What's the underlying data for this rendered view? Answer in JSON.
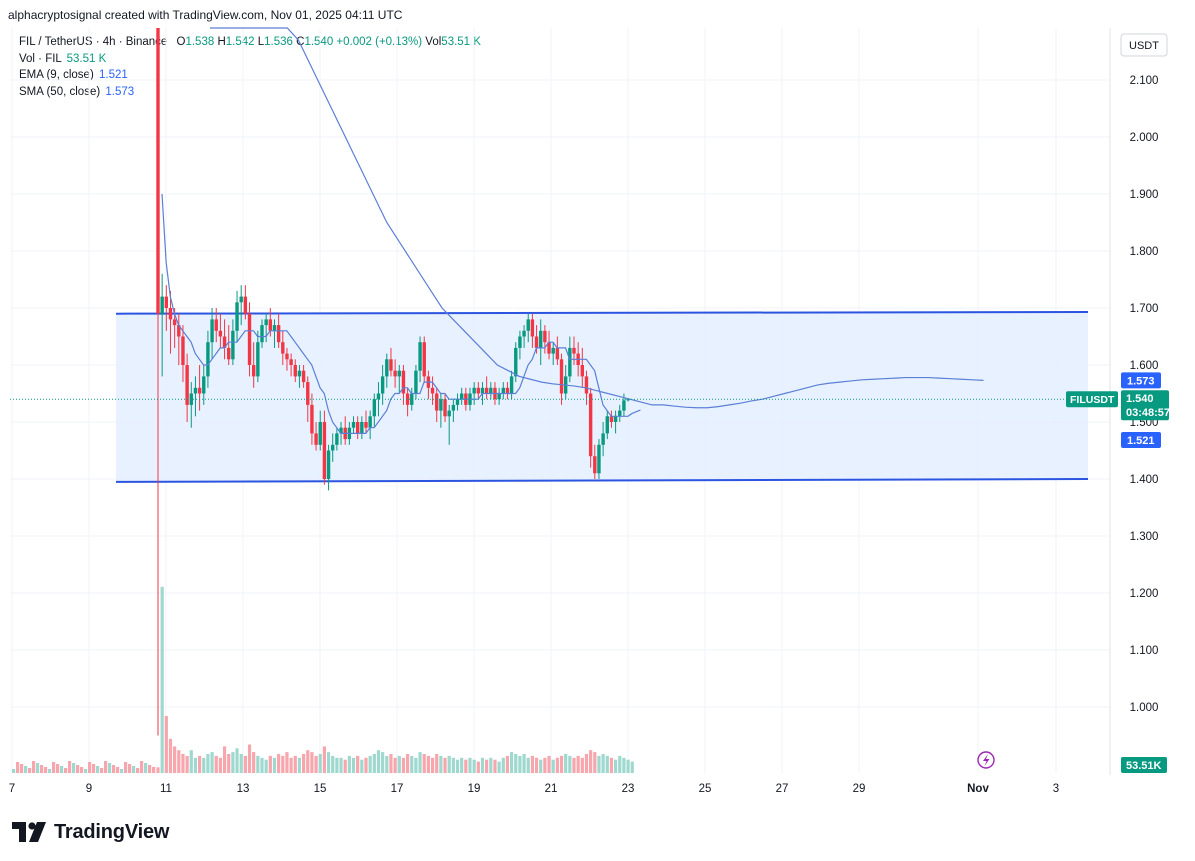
{
  "header": {
    "credit": "alphacryptosignal created with TradingView.com, Nov 01, 2025 04:11 UTC"
  },
  "legend": {
    "symbol": "FIL / TetherUS · 4h · Binance",
    "open_label": "O",
    "open": "1.538",
    "high_label": "H",
    "high": "1.542",
    "low_label": "L",
    "low": "1.536",
    "close_label": "C",
    "close": "1.540",
    "change": "+0.002 (+0.13%)",
    "vol_label": "Vol",
    "vol": "53.51 K",
    "vol_line_label": "Vol · FIL",
    "vol_line_value": "53.51 K",
    "ema_label": "EMA (9, close)",
    "ema_value": "1.521",
    "sma_label": "SMA (50, close)",
    "sma_value": "1.573"
  },
  "colors": {
    "up": "#089981",
    "down": "#f23645",
    "up_volume": "#9fd8cf",
    "down_volume": "#f6a6ac",
    "ma_line": "#5b7fd6",
    "channel_line": "#2b55e0",
    "channel_fill": "#e5efff",
    "axis_text": "#131722",
    "grid": "#f0f3fa"
  },
  "chart_data": {
    "type": "candlestick",
    "title": "FIL / TetherUS · 4h · Binance",
    "currency": "USDT",
    "x_ticks": [
      "7",
      "9",
      "11",
      "13",
      "15",
      "17",
      "19",
      "21",
      "23",
      "25",
      "27",
      "29",
      "Nov",
      "3"
    ],
    "y_ticks": [
      "2.100",
      "2.000",
      "1.900",
      "1.800",
      "1.700",
      "1.600",
      "1.500",
      "1.400",
      "1.300",
      "1.200",
      "1.100",
      "1.000"
    ],
    "y_range": [
      0.93,
      2.14
    ],
    "price_labels": {
      "sma": "1.573",
      "ticker": "FILUSDT",
      "last": "1.540",
      "countdown": "03:48:57",
      "ema": "1.521",
      "volume": "53.51K"
    },
    "channel": {
      "upper": [
        {
          "date": "Oct 10",
          "price": 1.69
        },
        {
          "date": "Nov 1",
          "price": 1.693
        }
      ],
      "lower": [
        {
          "date": "Oct 10",
          "price": 1.395
        },
        {
          "date": "Nov 1",
          "price": 1.4
        }
      ]
    },
    "candles_4h": [
      {
        "o": 2.3,
        "h": 2.6,
        "l": 0.95,
        "c": 1.69
      },
      {
        "o": 1.69,
        "h": 1.76,
        "l": 1.58,
        "c": 1.72
      },
      {
        "o": 1.72,
        "h": 1.74,
        "l": 1.66,
        "c": 1.7
      },
      {
        "o": 1.7,
        "h": 1.73,
        "l": 1.62,
        "c": 1.68
      },
      {
        "o": 1.68,
        "h": 1.7,
        "l": 1.63,
        "c": 1.67
      },
      {
        "o": 1.67,
        "h": 1.69,
        "l": 1.6,
        "c": 1.65
      },
      {
        "o": 1.65,
        "h": 1.67,
        "l": 1.57,
        "c": 1.6
      },
      {
        "o": 1.6,
        "h": 1.62,
        "l": 1.5,
        "c": 1.53
      },
      {
        "o": 1.53,
        "h": 1.57,
        "l": 1.49,
        "c": 1.55
      },
      {
        "o": 1.55,
        "h": 1.58,
        "l": 1.51,
        "c": 1.56
      },
      {
        "o": 1.56,
        "h": 1.6,
        "l": 1.52,
        "c": 1.55
      },
      {
        "o": 1.55,
        "h": 1.6,
        "l": 1.53,
        "c": 1.58
      },
      {
        "o": 1.58,
        "h": 1.66,
        "l": 1.56,
        "c": 1.64
      },
      {
        "o": 1.64,
        "h": 1.7,
        "l": 1.61,
        "c": 1.68
      },
      {
        "o": 1.68,
        "h": 1.7,
        "l": 1.64,
        "c": 1.66
      },
      {
        "o": 1.66,
        "h": 1.69,
        "l": 1.63,
        "c": 1.65
      },
      {
        "o": 1.65,
        "h": 1.68,
        "l": 1.61,
        "c": 1.63
      },
      {
        "o": 1.63,
        "h": 1.67,
        "l": 1.6,
        "c": 1.61
      },
      {
        "o": 1.61,
        "h": 1.68,
        "l": 1.6,
        "c": 1.66
      },
      {
        "o": 1.66,
        "h": 1.73,
        "l": 1.64,
        "c": 1.71
      },
      {
        "o": 1.71,
        "h": 1.74,
        "l": 1.67,
        "c": 1.72
      },
      {
        "o": 1.72,
        "h": 1.74,
        "l": 1.68,
        "c": 1.69
      },
      {
        "o": 1.69,
        "h": 1.71,
        "l": 1.58,
        "c": 1.6
      },
      {
        "o": 1.6,
        "h": 1.64,
        "l": 1.56,
        "c": 1.58
      },
      {
        "o": 1.58,
        "h": 1.66,
        "l": 1.57,
        "c": 1.64
      },
      {
        "o": 1.64,
        "h": 1.68,
        "l": 1.63,
        "c": 1.67
      },
      {
        "o": 1.67,
        "h": 1.69,
        "l": 1.64,
        "c": 1.68
      },
      {
        "o": 1.68,
        "h": 1.7,
        "l": 1.65,
        "c": 1.66
      },
      {
        "o": 1.66,
        "h": 1.68,
        "l": 1.63,
        "c": 1.67
      },
      {
        "o": 1.67,
        "h": 1.69,
        "l": 1.63,
        "c": 1.64
      },
      {
        "o": 1.64,
        "h": 1.66,
        "l": 1.6,
        "c": 1.62
      },
      {
        "o": 1.62,
        "h": 1.63,
        "l": 1.59,
        "c": 1.61
      },
      {
        "o": 1.61,
        "h": 1.62,
        "l": 1.58,
        "c": 1.6
      },
      {
        "o": 1.6,
        "h": 1.61,
        "l": 1.57,
        "c": 1.58
      },
      {
        "o": 1.58,
        "h": 1.6,
        "l": 1.56,
        "c": 1.59
      },
      {
        "o": 1.59,
        "h": 1.6,
        "l": 1.56,
        "c": 1.57
      },
      {
        "o": 1.57,
        "h": 1.58,
        "l": 1.5,
        "c": 1.53
      },
      {
        "o": 1.53,
        "h": 1.55,
        "l": 1.46,
        "c": 1.48
      },
      {
        "o": 1.48,
        "h": 1.5,
        "l": 1.45,
        "c": 1.46
      },
      {
        "o": 1.46,
        "h": 1.52,
        "l": 1.45,
        "c": 1.5
      },
      {
        "o": 1.5,
        "h": 1.52,
        "l": 1.39,
        "c": 1.4
      },
      {
        "o": 1.4,
        "h": 1.46,
        "l": 1.38,
        "c": 1.45
      },
      {
        "o": 1.45,
        "h": 1.48,
        "l": 1.43,
        "c": 1.46
      },
      {
        "o": 1.46,
        "h": 1.49,
        "l": 1.45,
        "c": 1.48
      },
      {
        "o": 1.48,
        "h": 1.5,
        "l": 1.46,
        "c": 1.49
      },
      {
        "o": 1.49,
        "h": 1.51,
        "l": 1.46,
        "c": 1.47
      },
      {
        "o": 1.47,
        "h": 1.5,
        "l": 1.46,
        "c": 1.49
      },
      {
        "o": 1.49,
        "h": 1.51,
        "l": 1.48,
        "c": 1.5
      },
      {
        "o": 1.5,
        "h": 1.51,
        "l": 1.47,
        "c": 1.48
      },
      {
        "o": 1.48,
        "h": 1.51,
        "l": 1.47,
        "c": 1.5
      },
      {
        "o": 1.5,
        "h": 1.52,
        "l": 1.48,
        "c": 1.49
      },
      {
        "o": 1.49,
        "h": 1.52,
        "l": 1.47,
        "c": 1.51
      },
      {
        "o": 1.51,
        "h": 1.55,
        "l": 1.49,
        "c": 1.54
      },
      {
        "o": 1.54,
        "h": 1.57,
        "l": 1.51,
        "c": 1.55
      },
      {
        "o": 1.55,
        "h": 1.6,
        "l": 1.53,
        "c": 1.58
      },
      {
        "o": 1.58,
        "h": 1.62,
        "l": 1.56,
        "c": 1.61
      },
      {
        "o": 1.61,
        "h": 1.63,
        "l": 1.58,
        "c": 1.59
      },
      {
        "o": 1.59,
        "h": 1.61,
        "l": 1.56,
        "c": 1.58
      },
      {
        "o": 1.58,
        "h": 1.6,
        "l": 1.55,
        "c": 1.59
      },
      {
        "o": 1.59,
        "h": 1.6,
        "l": 1.53,
        "c": 1.55
      },
      {
        "o": 1.55,
        "h": 1.56,
        "l": 1.51,
        "c": 1.53
      },
      {
        "o": 1.53,
        "h": 1.56,
        "l": 1.52,
        "c": 1.55
      },
      {
        "o": 1.55,
        "h": 1.6,
        "l": 1.54,
        "c": 1.59
      },
      {
        "o": 1.59,
        "h": 1.65,
        "l": 1.57,
        "c": 1.64
      },
      {
        "o": 1.64,
        "h": 1.65,
        "l": 1.57,
        "c": 1.58
      },
      {
        "o": 1.58,
        "h": 1.59,
        "l": 1.54,
        "c": 1.56
      },
      {
        "o": 1.56,
        "h": 1.58,
        "l": 1.53,
        "c": 1.55
      },
      {
        "o": 1.55,
        "h": 1.56,
        "l": 1.5,
        "c": 1.52
      },
      {
        "o": 1.52,
        "h": 1.55,
        "l": 1.49,
        "c": 1.54
      },
      {
        "o": 1.54,
        "h": 1.55,
        "l": 1.5,
        "c": 1.51
      },
      {
        "o": 1.51,
        "h": 1.53,
        "l": 1.46,
        "c": 1.52
      },
      {
        "o": 1.52,
        "h": 1.54,
        "l": 1.5,
        "c": 1.53
      },
      {
        "o": 1.53,
        "h": 1.55,
        "l": 1.52,
        "c": 1.54
      },
      {
        "o": 1.54,
        "h": 1.56,
        "l": 1.53,
        "c": 1.55
      },
      {
        "o": 1.55,
        "h": 1.56,
        "l": 1.52,
        "c": 1.53
      },
      {
        "o": 1.53,
        "h": 1.56,
        "l": 1.52,
        "c": 1.55
      },
      {
        "o": 1.55,
        "h": 1.57,
        "l": 1.53,
        "c": 1.56
      },
      {
        "o": 1.56,
        "h": 1.57,
        "l": 1.54,
        "c": 1.55
      },
      {
        "o": 1.55,
        "h": 1.57,
        "l": 1.53,
        "c": 1.56
      },
      {
        "o": 1.56,
        "h": 1.58,
        "l": 1.54,
        "c": 1.55
      },
      {
        "o": 1.55,
        "h": 1.57,
        "l": 1.54,
        "c": 1.56
      },
      {
        "o": 1.56,
        "h": 1.57,
        "l": 1.53,
        "c": 1.54
      },
      {
        "o": 1.54,
        "h": 1.56,
        "l": 1.53,
        "c": 1.55
      },
      {
        "o": 1.55,
        "h": 1.57,
        "l": 1.54,
        "c": 1.56
      },
      {
        "o": 1.56,
        "h": 1.57,
        "l": 1.54,
        "c": 1.55
      },
      {
        "o": 1.55,
        "h": 1.59,
        "l": 1.54,
        "c": 1.58
      },
      {
        "o": 1.58,
        "h": 1.64,
        "l": 1.57,
        "c": 1.63
      },
      {
        "o": 1.63,
        "h": 1.66,
        "l": 1.61,
        "c": 1.65
      },
      {
        "o": 1.65,
        "h": 1.67,
        "l": 1.63,
        "c": 1.66
      },
      {
        "o": 1.66,
        "h": 1.69,
        "l": 1.64,
        "c": 1.68
      },
      {
        "o": 1.68,
        "h": 1.69,
        "l": 1.63,
        "c": 1.65
      },
      {
        "o": 1.65,
        "h": 1.67,
        "l": 1.62,
        "c": 1.63
      },
      {
        "o": 1.63,
        "h": 1.68,
        "l": 1.6,
        "c": 1.66
      },
      {
        "o": 1.66,
        "h": 1.67,
        "l": 1.62,
        "c": 1.64
      },
      {
        "o": 1.64,
        "h": 1.66,
        "l": 1.61,
        "c": 1.62
      },
      {
        "o": 1.62,
        "h": 1.64,
        "l": 1.6,
        "c": 1.63
      },
      {
        "o": 1.63,
        "h": 1.65,
        "l": 1.6,
        "c": 1.61
      },
      {
        "o": 1.61,
        "h": 1.62,
        "l": 1.53,
        "c": 1.55
      },
      {
        "o": 1.55,
        "h": 1.6,
        "l": 1.54,
        "c": 1.58
      },
      {
        "o": 1.58,
        "h": 1.65,
        "l": 1.57,
        "c": 1.63
      },
      {
        "o": 1.63,
        "h": 1.65,
        "l": 1.6,
        "c": 1.62
      },
      {
        "o": 1.62,
        "h": 1.64,
        "l": 1.58,
        "c": 1.6
      },
      {
        "o": 1.6,
        "h": 1.63,
        "l": 1.56,
        "c": 1.58
      },
      {
        "o": 1.58,
        "h": 1.59,
        "l": 1.53,
        "c": 1.55
      },
      {
        "o": 1.55,
        "h": 1.56,
        "l": 1.42,
        "c": 1.44
      },
      {
        "o": 1.44,
        "h": 1.46,
        "l": 1.4,
        "c": 1.41
      },
      {
        "o": 1.41,
        "h": 1.47,
        "l": 1.4,
        "c": 1.46
      },
      {
        "o": 1.46,
        "h": 1.5,
        "l": 1.44,
        "c": 1.48
      },
      {
        "o": 1.48,
        "h": 1.52,
        "l": 1.47,
        "c": 1.51
      },
      {
        "o": 1.51,
        "h": 1.52,
        "l": 1.49,
        "c": 1.5
      },
      {
        "o": 1.5,
        "h": 1.52,
        "l": 1.48,
        "c": 1.51
      },
      {
        "o": 1.51,
        "h": 1.53,
        "l": 1.5,
        "c": 1.52
      },
      {
        "o": 1.52,
        "h": 1.55,
        "l": 1.51,
        "c": 1.538
      },
      {
        "o": 1.538,
        "h": 1.542,
        "l": 1.536,
        "c": 1.54
      }
    ],
    "volume_4h": [
      3,
      98,
      30,
      18,
      14,
      12,
      10,
      9,
      12,
      8,
      9,
      8,
      10,
      11,
      9,
      8,
      14,
      10,
      11,
      13,
      10,
      9,
      15,
      11,
      9,
      8,
      7,
      9,
      8,
      10,
      9,
      11,
      8,
      9,
      8,
      10,
      12,
      11,
      9,
      10,
      14,
      11,
      9,
      8,
      8,
      7,
      9,
      8,
      9,
      7,
      8,
      9,
      10,
      12,
      11,
      9,
      10,
      8,
      9,
      8,
      10,
      9,
      8,
      11,
      10,
      9,
      8,
      10,
      9,
      8,
      9,
      8,
      7,
      8,
      7,
      8,
      7,
      6,
      8,
      7,
      8,
      7,
      6,
      8,
      9,
      11,
      10,
      9,
      10,
      8,
      9,
      8,
      7,
      8,
      9,
      7,
      8,
      9,
      10,
      9,
      8,
      9,
      8,
      10,
      12,
      11,
      9,
      10,
      9,
      8,
      7,
      9,
      8,
      7,
      6
    ],
    "ema_9": [
      1.9,
      1.78,
      1.72,
      1.69,
      1.67,
      1.66,
      1.65,
      1.64,
      1.62,
      1.61,
      1.6,
      1.6,
      1.61,
      1.62,
      1.63,
      1.63,
      1.64,
      1.64,
      1.64,
      1.65,
      1.66,
      1.66,
      1.66,
      1.65,
      1.65,
      1.65,
      1.66,
      1.66,
      1.66,
      1.66,
      1.66,
      1.65,
      1.64,
      1.63,
      1.62,
      1.61,
      1.6,
      1.58,
      1.56,
      1.55,
      1.52,
      1.5,
      1.49,
      1.48,
      1.48,
      1.48,
      1.48,
      1.48,
      1.48,
      1.48,
      1.49,
      1.49,
      1.5,
      1.51,
      1.52,
      1.54,
      1.55,
      1.55,
      1.56,
      1.56,
      1.55,
      1.55,
      1.55,
      1.57,
      1.57,
      1.57,
      1.56,
      1.55,
      1.55,
      1.54,
      1.54,
      1.54,
      1.54,
      1.54,
      1.54,
      1.54,
      1.54,
      1.55,
      1.55,
      1.55,
      1.55,
      1.55,
      1.55,
      1.55,
      1.55,
      1.55,
      1.56,
      1.58,
      1.6,
      1.61,
      1.63,
      1.63,
      1.63,
      1.64,
      1.64,
      1.63,
      1.63,
      1.63,
      1.61,
      1.61,
      1.61,
      1.61,
      1.61,
      1.6,
      1.59,
      1.56,
      1.53,
      1.52,
      1.51,
      1.51,
      1.51,
      1.51,
      1.51,
      1.515,
      1.518,
      1.521
    ],
    "sma_50": [
      2.5,
      2.45,
      2.41,
      2.37,
      2.33,
      2.29,
      2.25,
      2.21,
      2.17,
      2.13,
      2.09,
      2.05,
      2.01,
      1.97,
      1.93,
      1.89,
      1.85,
      1.82,
      1.79,
      1.76,
      1.73,
      1.7,
      1.68,
      1.66,
      1.64,
      1.62,
      1.6,
      1.59,
      1.58,
      1.575,
      1.57,
      1.567,
      1.565,
      1.563,
      1.56,
      1.555,
      1.55,
      1.545,
      1.54,
      1.535,
      1.53,
      1.53,
      1.528,
      1.526,
      1.525,
      1.525,
      1.527,
      1.53,
      1.533,
      1.537,
      1.54,
      1.545,
      1.55,
      1.555,
      1.56,
      1.565,
      1.568,
      1.57,
      1.572,
      1.574,
      1.575,
      1.576,
      1.577,
      1.578,
      1.578,
      1.578,
      1.577,
      1.576,
      1.575,
      1.574,
      1.573
    ]
  }
}
